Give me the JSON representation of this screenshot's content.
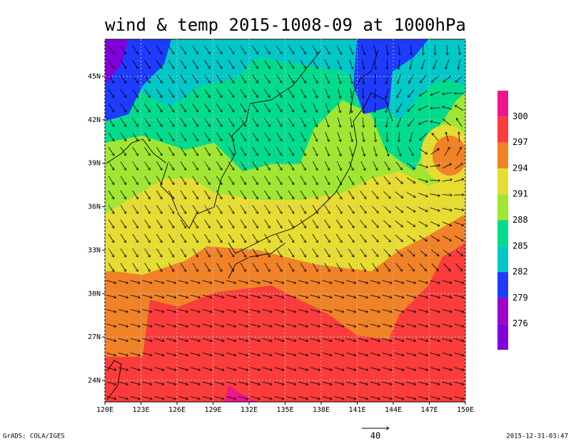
{
  "title": "wind & temp 2015-1008-09 at 1000hPa",
  "lon_ticks": [
    {
      "value": 120,
      "label": "120E"
    },
    {
      "value": 123,
      "label": "123E"
    },
    {
      "value": 126,
      "label": "126E"
    },
    {
      "value": 129,
      "label": "129E"
    },
    {
      "value": 132,
      "label": "132E"
    },
    {
      "value": 135,
      "label": "135E"
    },
    {
      "value": 138,
      "label": "138E"
    },
    {
      "value": 141,
      "label": "141E"
    },
    {
      "value": 144,
      "label": "144E"
    },
    {
      "value": 147,
      "label": "147E"
    },
    {
      "value": 150,
      "label": "150E"
    }
  ],
  "lat_ticks": [
    {
      "value": 24,
      "label": "24N"
    },
    {
      "value": 27,
      "label": "27N"
    },
    {
      "value": 30,
      "label": "30N"
    },
    {
      "value": 33,
      "label": "33N"
    },
    {
      "value": 36,
      "label": "36N"
    },
    {
      "value": 39,
      "label": "39N"
    },
    {
      "value": 42,
      "label": "42N"
    },
    {
      "value": 45,
      "label": "45N"
    }
  ],
  "colorbar": {
    "levels": [
      300,
      297,
      294,
      291,
      288,
      285,
      282,
      279,
      276
    ],
    "colors": [
      "#f0148c",
      "#fa3c3c",
      "#f08228",
      "#e6dc32",
      "#a0e632",
      "#00dc8c",
      "#00c8c8",
      "#1e3cff",
      "#a000c8",
      "#8200dc"
    ]
  },
  "vector_reference": "40",
  "footer_left": "GrADS: COLA/IGES",
  "footer_right": "2015-12-31-03:47"
}
